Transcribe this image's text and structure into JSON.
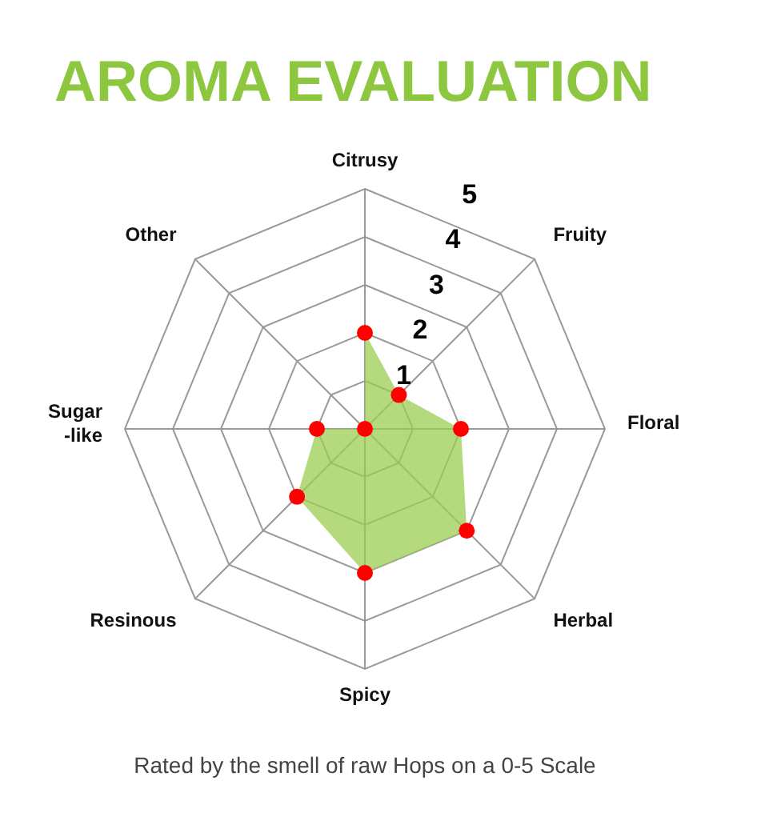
{
  "chart_data": {
    "type": "radar",
    "title": "AROMA EVALUATION",
    "categories": [
      "Citrusy",
      "Fruity",
      "Floral",
      "Herbal",
      "Spicy",
      "Resinous",
      "Sugar-like",
      "Other"
    ],
    "series": [
      {
        "color": "#9ccc52",
        "values": [
          2,
          1,
          2,
          3,
          3,
          2,
          1,
          0
        ]
      }
    ],
    "ylim": [
      0,
      5
    ],
    "yticks": [
      1,
      2,
      3,
      4,
      5
    ],
    "grid": true,
    "marker": "circle",
    "annotations": [
      "Rated by the smell of raw Hops on a 0-5 Scale"
    ]
  }
}
